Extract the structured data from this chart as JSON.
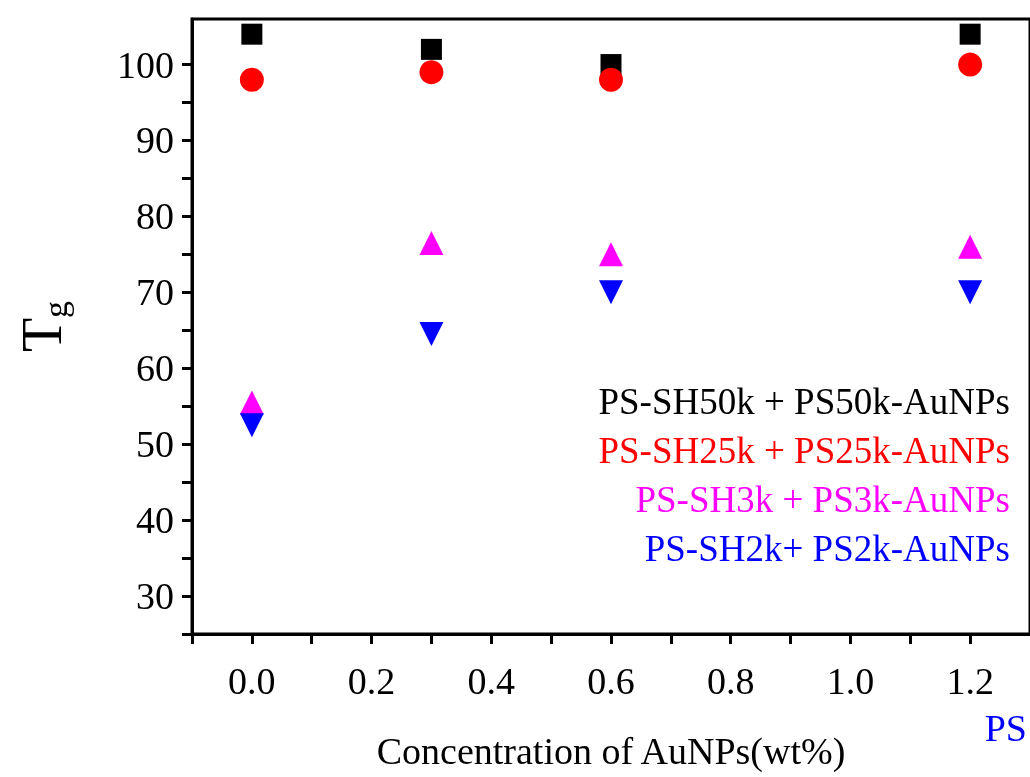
{
  "chart_data": {
    "type": "scatter",
    "xlabel": "Concentration of AuNPs(wt%)",
    "ylabel": "T$_{g}$",
    "x": [
      0,
      0.3,
      0.6,
      1.2
    ],
    "series": [
      {
        "name": "PS-SH50k + PS50k-AuNPs",
        "color": "#000000",
        "marker": "square",
        "values": [
          104,
          102,
          100,
          104
        ]
      },
      {
        "name": "PS-SH25k + PS25k-AuNPs",
        "color": "#ff0000",
        "marker": "circle",
        "values": [
          98,
          99,
          98,
          100
        ]
      },
      {
        "name": "PS-SH3k + PS3k-AuNPs",
        "color": "#ff00ff",
        "marker": "triangle",
        "values": [
          55.5,
          76.5,
          75,
          76
        ]
      },
      {
        "name": "PS-SH2k+ PS2k-AuNPs",
        "color": "#0000ff",
        "marker": "triangle-down",
        "values": [
          52.5,
          64.5,
          70,
          70
        ]
      }
    ],
    "xlim": [
      -0.1,
      1.3
    ],
    "xticks": [
      {
        "value": 0,
        "label": "0.0"
      },
      0.2,
      0.4,
      0.6,
      0.8,
      {
        "value": 1,
        "label": "1.0"
      },
      1.2
    ],
    "ylim": [
      25,
      106
    ],
    "yticks": [
      30,
      40,
      50,
      60,
      70,
      80,
      90,
      100
    ],
    "legend": "right",
    "grid": false,
    "annotations": [
      "PS"
    ]
  }
}
